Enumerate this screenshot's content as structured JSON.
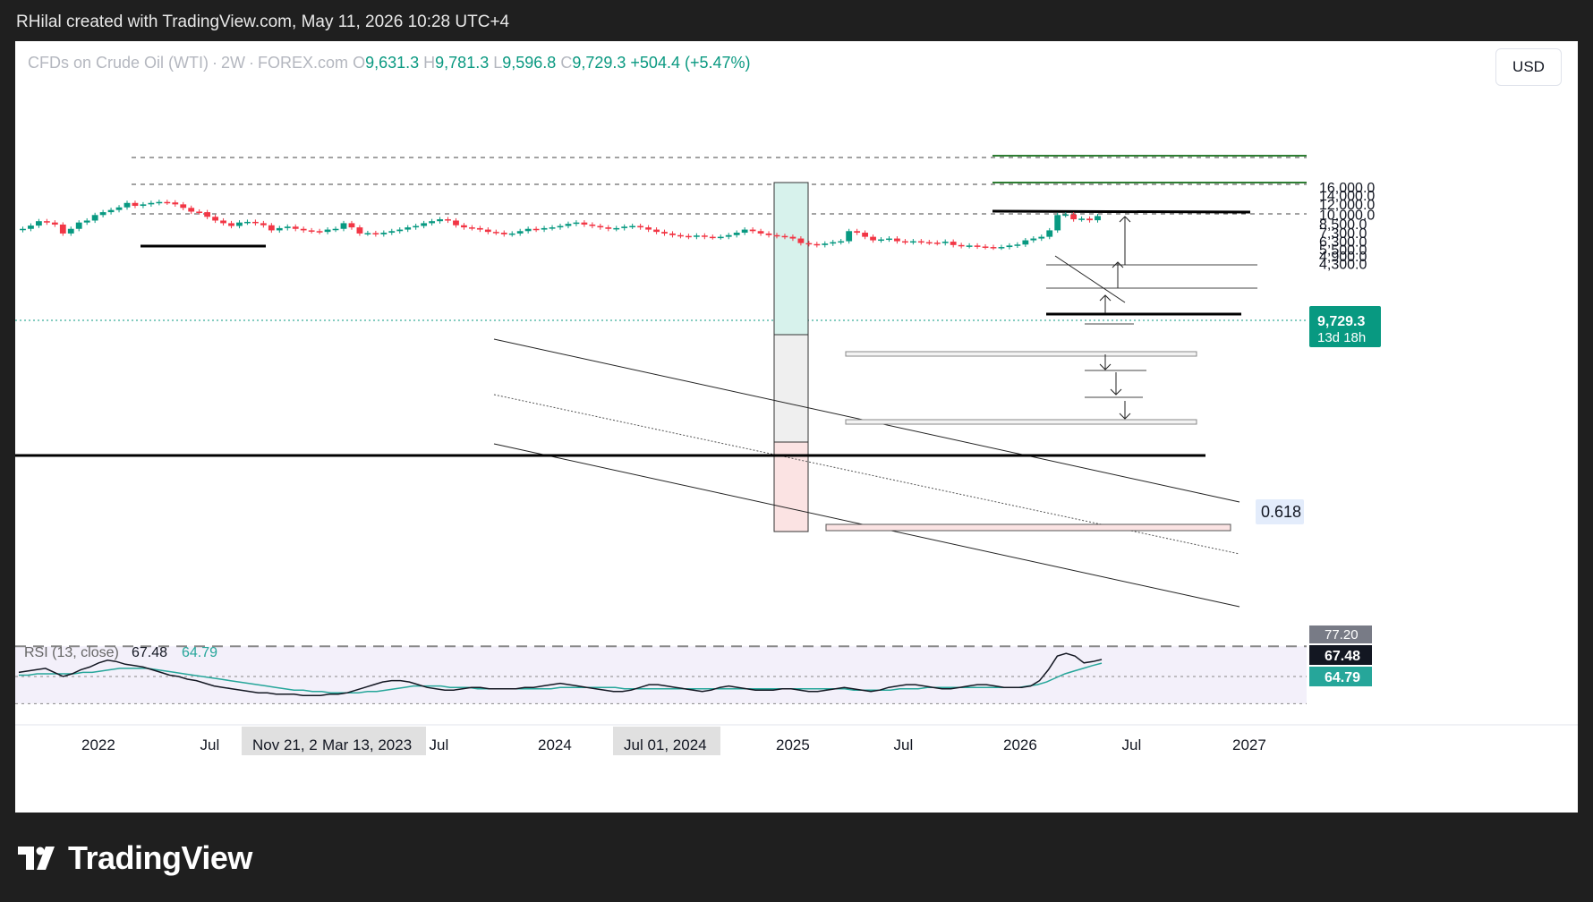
{
  "header": {
    "credit": "RHilal created with TradingView.com, May 11, 2026 10:28 UTC+4"
  },
  "legend": {
    "symbol": "CFDs on Crude Oil (WTI)",
    "interval": "2W",
    "exchange": "FOREX.com",
    "o_label": "O",
    "o_value": "9,631.3",
    "h_label": "H",
    "h_value": "9,781.3",
    "l_label": "L",
    "l_value": "9,596.8",
    "c_label": "C",
    "c_value": "9,729.3",
    "change": "+504.4 (+5.47%)"
  },
  "currency_button": "USD",
  "footer": {
    "brand": "TradingView"
  },
  "colors": {
    "up": "#089981",
    "down": "#f23645",
    "rsi_line": "#131722",
    "rsi_ma": "#26a69a",
    "price_tag": "#089981"
  },
  "chart_data": {
    "type": "candlestick",
    "title": "",
    "price_scale": {
      "ticks": [
        "16,000.0",
        "14,000.0",
        "12,000.0",
        "10,000.0",
        "8,500.0",
        "7,300.0",
        "6,300.0",
        "5,500.0",
        "4,900.0",
        "4,300.0"
      ],
      "tick_values": [
        16000,
        14000,
        12000,
        10000,
        8500,
        7300,
        6300,
        5500,
        4900,
        4300
      ]
    },
    "time_axis": {
      "labels": [
        "2022",
        "Jul",
        "Jul",
        "2024",
        "2025",
        "Jul",
        "2026",
        "Jul",
        "2027"
      ],
      "highlighted": [
        "Nov 21, 2022",
        "Mar 13, 2023",
        "Jul 01, 2024"
      ]
    },
    "last_price": {
      "value": "9,729.3",
      "countdown": "13d 18h"
    },
    "fib_label": "0.618",
    "candles_close_path": [
      7800,
      8250,
      8900,
      8700,
      8400,
      7200,
      7800,
      8700,
      9000,
      9900,
      10400,
      10800,
      11300,
      12200,
      11600,
      11900,
      12200,
      12400,
      12300,
      11900,
      11200,
      10500,
      10400,
      9600,
      9000,
      8600,
      8200,
      8700,
      8800,
      8600,
      8300,
      7600,
      7900,
      8100,
      7800,
      7600,
      7500,
      7400,
      7700,
      7800,
      8600,
      8000,
      7200,
      7250,
      7100,
      7300,
      7500,
      7700,
      8000,
      8200,
      8600,
      8900,
      9200,
      9000,
      8300,
      8000,
      7900,
      7700,
      7400,
      7300,
      7100,
      7200,
      7500,
      7800,
      7700,
      7900,
      8000,
      8200,
      8500,
      8700,
      8400,
      8200,
      8000,
      7800,
      7900,
      8100,
      8200,
      8000,
      7700,
      7400,
      7200,
      7000,
      6900,
      6800,
      6950,
      6800,
      6750,
      6800,
      7000,
      7300,
      7700,
      7500,
      7200,
      7000,
      6900,
      6800,
      6600,
      6100,
      6000,
      5900,
      6050,
      6200,
      6300,
      7500,
      7300,
      6800,
      6400,
      6500,
      6600,
      6300,
      6200,
      6300,
      6200,
      6150,
      6100,
      6250,
      5900,
      5800,
      5850,
      5750,
      5700,
      5650,
      5700,
      5850,
      5950,
      6400,
      6600,
      6800,
      7600,
      9900,
      10000,
      9200,
      9300,
      9050,
      9729.3
    ],
    "rsi": {
      "label": "RSI (13, close)",
      "value": "67.48",
      "ma_value": "64.79",
      "upper_level_tag": "77.20",
      "values": [
        58,
        59,
        60,
        61,
        58,
        55,
        57,
        60,
        62,
        65,
        67,
        66,
        64,
        63,
        62,
        60,
        58,
        56,
        55,
        53,
        52,
        50,
        48,
        47,
        46,
        45,
        44,
        43,
        43,
        42,
        42,
        42,
        41,
        41,
        41,
        42,
        42,
        43,
        45,
        47,
        49,
        51,
        52,
        52,
        51,
        49,
        47,
        46,
        45,
        45,
        46,
        47,
        47,
        46,
        46,
        46,
        46,
        47,
        47,
        48,
        49,
        50,
        49,
        48,
        47,
        46,
        45,
        44,
        44,
        45,
        47,
        49,
        49,
        48,
        47,
        46,
        45,
        44,
        45,
        47,
        48,
        47,
        46,
        45,
        45,
        45,
        46,
        46,
        45,
        44,
        44,
        45,
        46,
        47,
        46,
        45,
        44,
        45,
        47,
        48,
        49,
        49,
        48,
        47,
        46,
        46,
        47,
        48,
        49,
        49,
        48,
        47,
        47,
        47,
        48,
        52,
        60,
        70,
        72,
        70,
        65,
        66,
        67.48
      ],
      "ma_values": [
        56,
        56,
        57,
        57,
        57,
        57,
        57,
        58,
        58,
        59,
        60,
        61,
        61,
        61,
        61,
        60,
        59,
        58,
        57,
        56,
        55,
        54,
        53,
        52,
        51,
        50,
        49,
        48,
        47,
        46,
        45,
        45,
        44,
        44,
        43,
        43,
        43,
        43,
        44,
        44,
        45,
        46,
        47,
        48,
        48,
        48,
        48,
        47,
        47,
        47,
        46,
        46,
        46,
        46,
        46,
        46,
        46,
        46,
        46,
        47,
        47,
        47,
        47,
        47,
        47,
        47,
        46,
        46,
        46,
        46,
        46,
        46,
        46,
        46,
        46,
        46,
        46,
        46,
        46,
        46,
        46,
        46,
        46,
        46,
        46,
        46,
        46,
        46,
        46,
        46,
        46,
        45,
        45,
        45,
        45,
        45,
        46,
        46,
        46,
        47,
        47,
        47,
        47,
        47,
        47,
        47,
        47,
        47,
        47,
        47,
        48,
        49,
        51,
        54,
        57,
        59,
        61,
        63,
        64.79
      ],
      "levels": [
        77.2,
        55,
        35
      ]
    }
  }
}
